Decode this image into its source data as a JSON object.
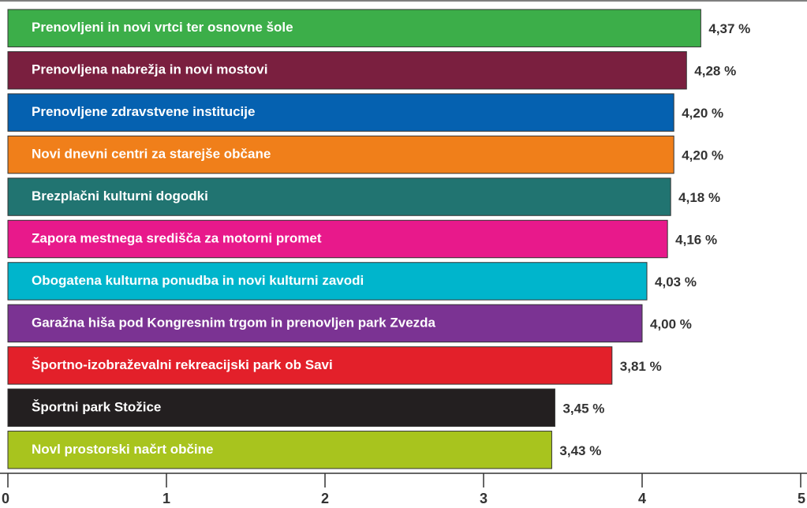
{
  "chart_data": {
    "type": "bar",
    "orientation": "horizontal",
    "categories": [
      "Prenovljeni in novi vrtci ter osnovne šole",
      "Prenovljena nabrežja in novi mostovi",
      "Prenovljene zdravstvene institucije",
      "Novi dnevni centri za starejše občane",
      "Brezplačni kulturni dogodki",
      "Zapora mestnega središča za motorni promet",
      "Obogatena kulturna ponudba in novi kulturni zavodi",
      "Garažna hiša pod Kongresnim trgom in prenovljen park Zvezda",
      "Športno-izobraževalni rekreacijski park ob Savi",
      "Športni park Stožice",
      "Novl prostorski načrt občine"
    ],
    "values": [
      4.37,
      4.28,
      4.2,
      4.2,
      4.18,
      4.16,
      4.03,
      4.0,
      3.81,
      3.45,
      3.43
    ],
    "value_labels": [
      "4,37 %",
      "4,28 %",
      "4,20 %",
      "4,20 %",
      "4,18 %",
      "4,16 %",
      "4,03 %",
      "4,00 %",
      "3,81 %",
      "3,45 %",
      "3,43 %"
    ],
    "colors": [
      "#3cae49",
      "#7a1f3f",
      "#0561b0",
      "#f07f1a",
      "#217471",
      "#e8198b",
      "#00b5cc",
      "#7b3393",
      "#e3202a",
      "#231f20",
      "#a8c41e"
    ],
    "xlim": [
      0,
      5
    ],
    "xticks": [
      0,
      1,
      2,
      3,
      4,
      5
    ]
  }
}
